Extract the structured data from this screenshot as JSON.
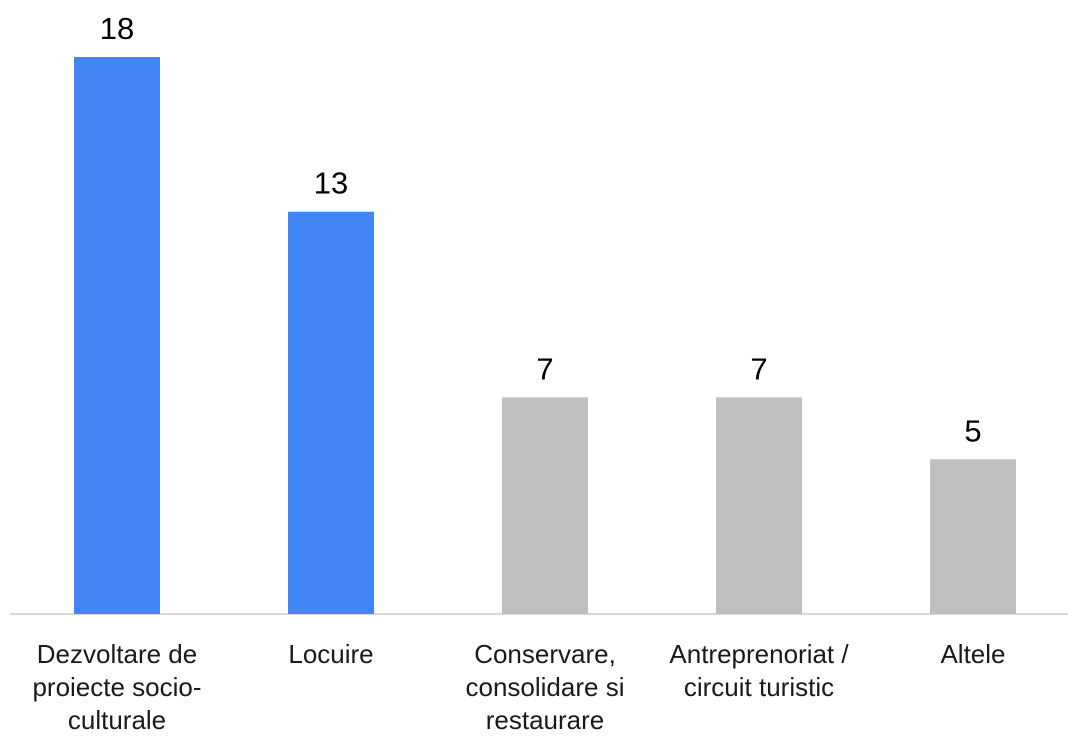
{
  "chart_data": {
    "type": "bar",
    "categories": [
      "Dezvoltare de proiecte socio-culturale",
      "Locuire",
      "Conservare, consolidare si restaurare",
      "Antreprenoriat / circuit turistic",
      "Altele"
    ],
    "values": [
      18,
      13,
      7,
      7,
      5
    ],
    "colors": [
      "#4285f4",
      "#4285f4",
      "#bfbfbf",
      "#bfbfbf",
      "#bfbfbf"
    ],
    "ylim": [
      0,
      18
    ]
  }
}
